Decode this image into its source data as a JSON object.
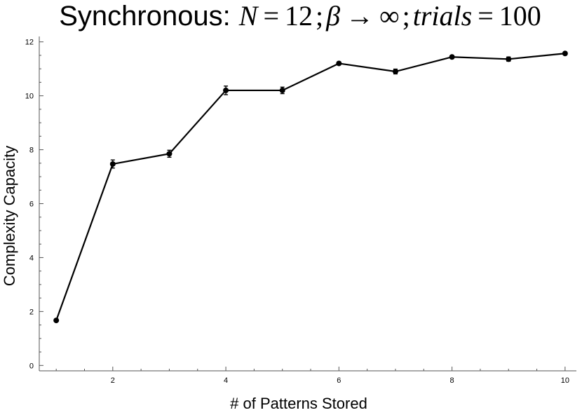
{
  "chart_data": {
    "type": "line",
    "title": {
      "prefix": "Synchronous:",
      "N_symbol": "N",
      "N_value": "12",
      "beta_symbol": "β",
      "arrow": "→",
      "infinity": "∞",
      "trials_word": "trials",
      "trials_value": "100",
      "equals": "=",
      "separator": ";"
    },
    "xlabel": "# of Patterns Stored",
    "ylabel": "Complexity Capacity",
    "xlim": [
      0.7,
      10.2
    ],
    "ylim": [
      -0.2,
      12.2
    ],
    "x_ticks": [
      2,
      4,
      6,
      8,
      10
    ],
    "x_minor_ticks": [
      1,
      1.5,
      2.5,
      3,
      3.5,
      4.5,
      5,
      5.5,
      6.5,
      7,
      7.5,
      8.5,
      9,
      9.5
    ],
    "y_ticks": [
      0,
      2,
      4,
      6,
      8,
      10,
      12
    ],
    "y_minor_ticks": [
      0.5,
      1,
      1.5,
      2.5,
      3,
      3.5,
      4.5,
      5,
      5.5,
      6.5,
      7,
      7.5,
      8.5,
      9,
      9.5,
      10.5,
      11,
      11.5
    ],
    "grid": false,
    "series": [
      {
        "x": [
          1,
          2,
          3,
          4,
          5,
          6,
          7,
          8,
          9,
          10
        ],
        "y": [
          1.67,
          7.47,
          7.85,
          10.2,
          10.2,
          11.2,
          10.9,
          11.44,
          11.36,
          11.57
        ],
        "error": [
          0.03,
          0.15,
          0.13,
          0.16,
          0.12,
          0.05,
          0.09,
          0.04,
          0.08,
          0.04
        ]
      }
    ]
  }
}
